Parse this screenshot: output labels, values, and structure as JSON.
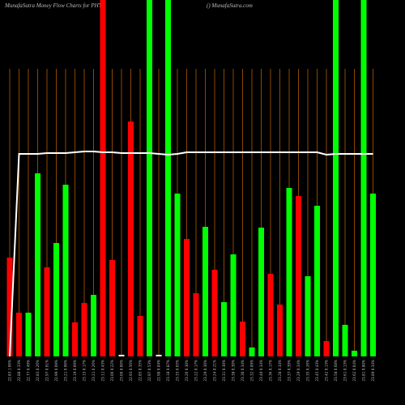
{
  "chart_data": {
    "type": "bar",
    "title": "MunafaSutra  Money Flow  Charts for PHYD",
    "subtitle": "() MunafaSutra.com",
    "categories": [
      "22.83 1.06%",
      "22.88 0.33%",
      "22.77 0.49%",
      "22.83 0.26%",
      "22.97 0.61%",
      "22.99 0.09%",
      "23.21 0.96%",
      "23.19 0.09%",
      "23.15 0.17%",
      "23.21 0.26%",
      "23.11 0.43%",
      "23.06 0.22%",
      "23.06 0.00%",
      "22.93 0.56%",
      "22.85 0.35%",
      "22.97 0.53%",
      "22.98 0.04%",
      "23.18 0.87%",
      "23.33 0.65%",
      "23.26 0.30%",
      "23.22 0.17%",
      "23.29 0.30%",
      "23.24 0.21%",
      "23.31 0.30%",
      "23.38 0.30%",
      "23.30 0.34%",
      "23.32 0.09%",
      "23.40 0.34%",
      "23.36 0.17%",
      "23.28 0.34%",
      "23.37 0.39%",
      "23.29 0.34%",
      "23.35 0.26%",
      "23.45 0.43%",
      "23.42 0.13%",
      "23.58 0.68%",
      "23.61 0.13%",
      "23.62 0.04%",
      "23.81 0.80%",
      "23.89 0.34%"
    ],
    "values": [
      122,
      54,
      54,
      226,
      110,
      140,
      212,
      42,
      66,
      76,
      440,
      119,
      2,
      290,
      50,
      440,
      2,
      440,
      201,
      145,
      78,
      160,
      107,
      67,
      126,
      43,
      11,
      159,
      102,
      64,
      208,
      198,
      99,
      186,
      19,
      440,
      39,
      7,
      440,
      201
    ],
    "colors": [
      "#ff0000",
      "#ff0000",
      "#00ff00",
      "#00ff00",
      "#ff0000",
      "#00ff00",
      "#00ff00",
      "#ff0000",
      "#ff0000",
      "#00ff00",
      "#ff0000",
      "#ff0000",
      "#ffffff",
      "#ff0000",
      "#ff0000",
      "#00ff00",
      "#ffffff",
      "#00ff00",
      "#00ff00",
      "#ff0000",
      "#ff0000",
      "#00ff00",
      "#ff0000",
      "#00ff00",
      "#00ff00",
      "#ff0000",
      "#00ff00",
      "#00ff00",
      "#ff0000",
      "#ff0000",
      "#00ff00",
      "#ff0000",
      "#00ff00",
      "#00ff00",
      "#ff0000",
      "#00ff00",
      "#00ff00",
      "#00ff00",
      "#00ff00",
      "#00ff00"
    ],
    "line": {
      "color": "#ffffff",
      "values": [
        0,
        250,
        250,
        250,
        251,
        251,
        251,
        252,
        253,
        253,
        252,
        252,
        251,
        251,
        251,
        251,
        250,
        249,
        250,
        252,
        252,
        252,
        252,
        252,
        252,
        252,
        252,
        252,
        252,
        252,
        252,
        252,
        252,
        252,
        249,
        250,
        250,
        250,
        250,
        250
      ]
    },
    "ylim": [
      0,
      440
    ],
    "grid": true,
    "grid_color": "#b35900"
  }
}
